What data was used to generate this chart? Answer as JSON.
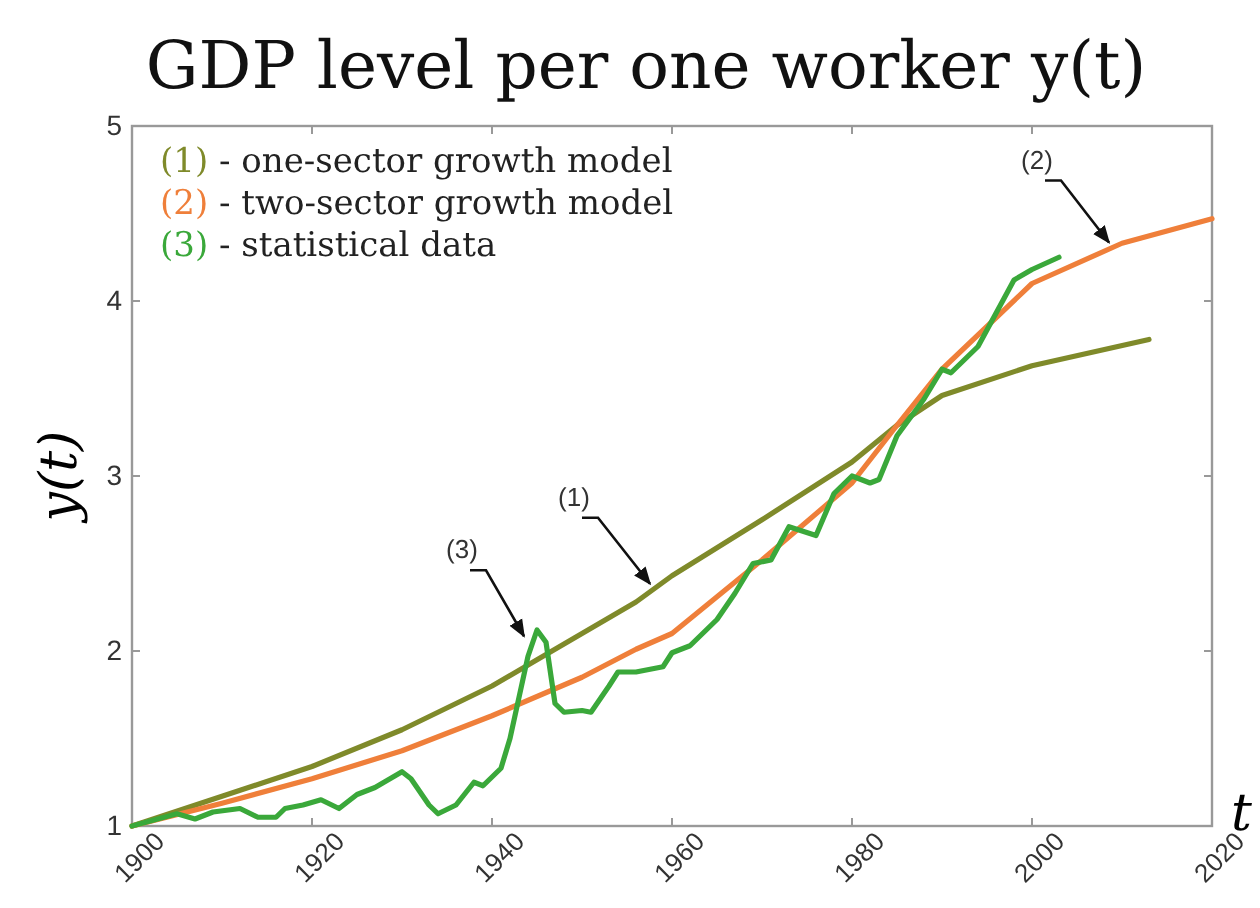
{
  "chart_data": {
    "type": "line",
    "title": "GDP level per one worker y(t)",
    "xlabel": "t",
    "ylabel": "y(t)",
    "xlim": [
      1900,
      2020
    ],
    "xticks": [
      1900,
      1920,
      1940,
      1960,
      1980,
      2000,
      2020
    ],
    "ylim": [
      1,
      5
    ],
    "yticks": [
      1,
      2,
      3,
      4,
      5
    ],
    "grid": false,
    "legend": "top left",
    "marker": "none",
    "line_style": "solid",
    "series": [
      {
        "name": "(1) - one-sector growth model",
        "color": "#7f8a2a",
        "x": [
          1900,
          1910,
          1920,
          1930,
          1940,
          1945,
          1950,
          1956,
          1960,
          1970,
          1980,
          1985,
          1990,
          2000,
          2013
        ],
        "values": [
          1.0,
          1.17,
          1.34,
          1.55,
          1.8,
          1.95,
          2.1,
          2.28,
          2.43,
          2.75,
          3.08,
          3.29,
          3.46,
          3.63,
          3.78
        ]
      },
      {
        "name": "(2) - two-sector growth model",
        "color": "#ef7f3a",
        "x": [
          1900,
          1910,
          1920,
          1930,
          1940,
          1950,
          1956,
          1960,
          1970,
          1980,
          1985,
          1990,
          2000,
          2010,
          2020
        ],
        "values": [
          1.0,
          1.13,
          1.27,
          1.43,
          1.63,
          1.85,
          2.01,
          2.1,
          2.52,
          2.96,
          3.29,
          3.61,
          4.1,
          4.33,
          4.47
        ]
      },
      {
        "name": "(3) - statistical data",
        "color": "#3aa83a",
        "x": [
          1900,
          1905,
          1907,
          1909,
          1912,
          1914,
          1916,
          1917,
          1919,
          1921,
          1923,
          1925,
          1927,
          1929,
          1930,
          1931,
          1933,
          1934,
          1936,
          1938,
          1939,
          1941,
          1942,
          1944,
          1945,
          1946,
          1947,
          1948,
          1950,
          1951,
          1953,
          1954,
          1956,
          1959,
          1960,
          1962,
          1965,
          1967,
          1969,
          1971,
          1973,
          1976,
          1978,
          1980,
          1982,
          1983,
          1985,
          1988,
          1990,
          1991,
          1994,
          1996,
          1998,
          2000,
          2003
        ],
        "values": [
          1.0,
          1.07,
          1.04,
          1.08,
          1.1,
          1.05,
          1.05,
          1.1,
          1.12,
          1.15,
          1.1,
          1.18,
          1.22,
          1.28,
          1.31,
          1.27,
          1.12,
          1.07,
          1.12,
          1.25,
          1.23,
          1.33,
          1.5,
          1.97,
          2.12,
          2.05,
          1.7,
          1.65,
          1.66,
          1.65,
          1.8,
          1.88,
          1.88,
          1.91,
          1.99,
          2.03,
          2.18,
          2.33,
          2.5,
          2.52,
          2.71,
          2.66,
          2.9,
          3.0,
          2.96,
          2.98,
          3.23,
          3.44,
          3.61,
          3.59,
          3.74,
          3.93,
          4.12,
          4.18,
          4.25
        ]
      }
    ],
    "annotations": [
      {
        "text": "(1)",
        "x": 1958,
        "y": 2.35
      },
      {
        "text": "(2)",
        "x": 2009,
        "y": 4.3
      },
      {
        "text": "(3)",
        "x": 1944,
        "y": 2.05
      }
    ]
  }
}
